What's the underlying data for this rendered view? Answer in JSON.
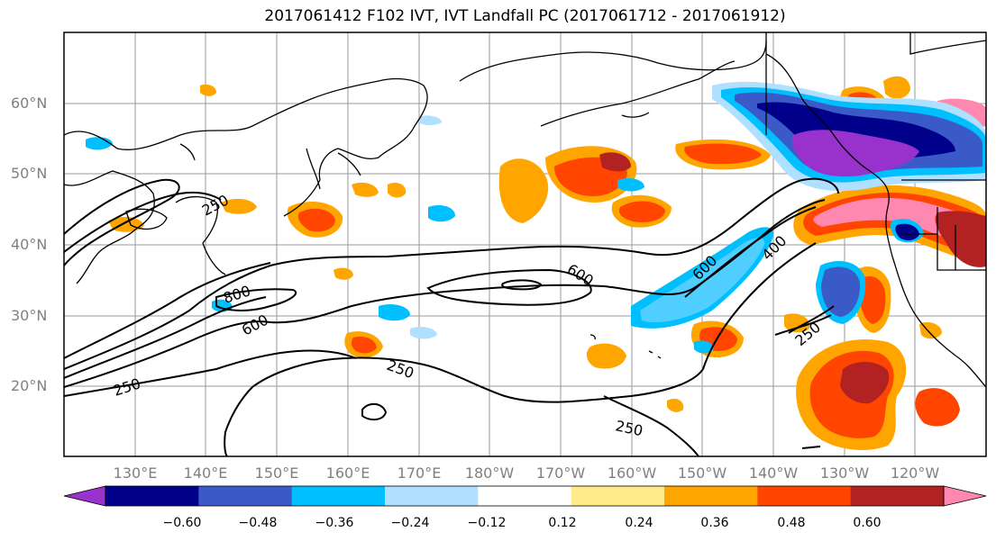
{
  "title": "2017061412 F102 IVT, IVT Landfall PC (2017061712 - 2017061912)",
  "map": {
    "lat_labels": [
      "60°N",
      "50°N",
      "40°N",
      "30°N",
      "20°N"
    ],
    "lon_labels": [
      "130°E",
      "140°E",
      "150°E",
      "160°E",
      "170°E",
      "180°W",
      "170°W",
      "160°W",
      "150°W",
      "140°W",
      "130°W",
      "120°W"
    ],
    "grid": true,
    "contour_labels": [
      "250",
      "800",
      "600",
      "250",
      "600",
      "600",
      "400",
      "250",
      "250",
      "250"
    ]
  },
  "colorbar": {
    "colors": [
      "#9932CC",
      "#00008B",
      "#3A5BC7",
      "#00BFFF",
      "#B0E0FF",
      "#FFFFFF",
      "#FFEB8A",
      "#FFA500",
      "#FF4500",
      "#B22222",
      "#FF88B0"
    ],
    "ticks": [
      "−0.60",
      "−0.48",
      "−0.36",
      "−0.24",
      "−0.12",
      "0.12",
      "0.24",
      "0.36",
      "0.48",
      "0.60"
    ]
  }
}
